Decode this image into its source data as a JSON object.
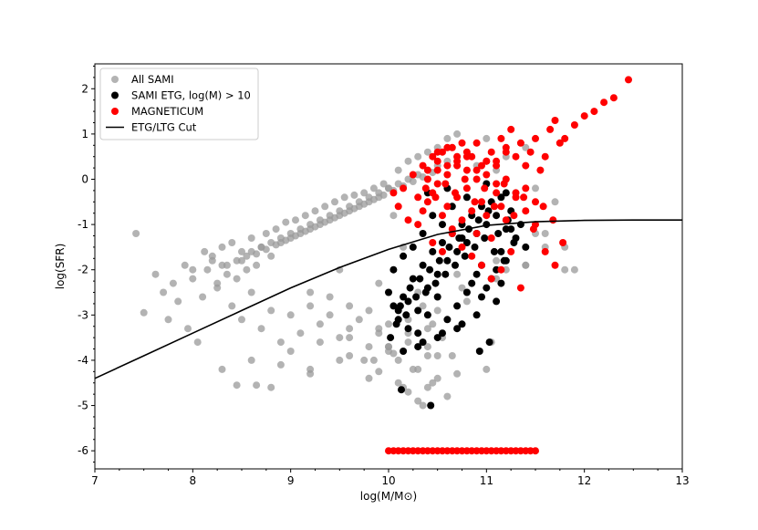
{
  "chart_data": {
    "type": "scatter",
    "xlabel": "log(M/M⊙)",
    "ylabel": "log(SFR)",
    "xlim": [
      7,
      13
    ],
    "ylim": [
      -6.4,
      2.55
    ],
    "xticks": [
      7,
      8,
      9,
      10,
      11,
      12,
      13
    ],
    "yticks": [
      -6,
      -5,
      -4,
      -3,
      -2,
      -1,
      0,
      1,
      2
    ],
    "grid": false,
    "legend_position": "top-left",
    "legend": [
      {
        "label": "All SAMI",
        "marker": "circle",
        "color": "#999999"
      },
      {
        "label": "SAMI ETG, log(M) > 10",
        "marker": "circle",
        "color": "#000000"
      },
      {
        "label": "MAGNETICUM",
        "marker": "circle",
        "color": "#ff0000"
      },
      {
        "label": "ETG/LTG Cut",
        "marker": "line",
        "color": "#000000"
      }
    ],
    "colors": {
      "all_sami": "#999999",
      "sami_etg": "#000000",
      "magneticum": "#ff0000",
      "cut_line": "#000000"
    },
    "series": [
      {
        "name": "All SAMI",
        "color": "#999999",
        "x": [
          7.42,
          7.5,
          7.62,
          7.7,
          7.75,
          7.8,
          7.85,
          7.92,
          7.95,
          8.0,
          8.05,
          8.12,
          8.2,
          8.25,
          8.3,
          8.35,
          8.4,
          8.45,
          8.5,
          8.55,
          8.6,
          8.65,
          8.7,
          8.75,
          8.8,
          8.85,
          8.9,
          8.95,
          9.0,
          9.05,
          9.1,
          9.15,
          9.2,
          9.25,
          9.3,
          9.35,
          9.4,
          9.45,
          9.5,
          9.55,
          9.6,
          9.65,
          9.7,
          9.75,
          9.8,
          9.85,
          9.9,
          9.95,
          10.0,
          10.05,
          10.1,
          10.15,
          10.2,
          10.25,
          10.3,
          10.35,
          10.4,
          10.45,
          10.5,
          10.55,
          10.6,
          10.65,
          10.7,
          10.75,
          10.8,
          10.9,
          11.0,
          11.1,
          11.2,
          11.3,
          11.4,
          11.5,
          11.6,
          11.7,
          11.8,
          11.9,
          8.1,
          8.25,
          8.4,
          8.5,
          8.6,
          8.7,
          8.8,
          8.9,
          9.0,
          9.1,
          9.2,
          9.3,
          9.4,
          9.5,
          9.6,
          9.7,
          9.8,
          9.9,
          10.0,
          10.1,
          10.2,
          10.3,
          10.4,
          10.5,
          8.2,
          8.35,
          8.5,
          8.6,
          8.7,
          8.8,
          8.9,
          9.0,
          9.1,
          9.2,
          9.3,
          9.4,
          9.5,
          9.6,
          9.7,
          9.8,
          9.9,
          10.0,
          10.1,
          10.2,
          10.3,
          10.4,
          10.5,
          10.6,
          10.7,
          8.0,
          8.15,
          8.3,
          8.45,
          8.55,
          8.65,
          8.75,
          8.85,
          8.95,
          9.05,
          9.15,
          9.25,
          9.35,
          9.45,
          9.55,
          9.65,
          9.75,
          9.85,
          9.95,
          10.05,
          10.15,
          10.25,
          10.35,
          10.45,
          9.2,
          9.4,
          9.6,
          9.8,
          10.0,
          10.2,
          10.4,
          8.3,
          8.6,
          8.9,
          9.2,
          9.5,
          9.8,
          10.1,
          10.4,
          9.0,
          9.3,
          9.6,
          9.9,
          10.2,
          10.5,
          10.8,
          11.1,
          11.4,
          8.8,
          9.2,
          9.6,
          10.0,
          10.4,
          10.8,
          11.2,
          11.6,
          9.5,
          9.9,
          10.3,
          10.7,
          11.1,
          11.5,
          10.2,
          10.6,
          11.0,
          11.4,
          11.8,
          10.35,
          10.7,
          11.05,
          10.25,
          10.3,
          10.45,
          10.15,
          9.9,
          10.05,
          9.85,
          9.75,
          8.65,
          8.45,
          10.0,
          10.5
        ],
        "y": [
          -1.2,
          -2.95,
          -2.1,
          -2.5,
          -3.1,
          -2.3,
          -2.7,
          -1.9,
          -3.3,
          -2.0,
          -3.6,
          -1.6,
          -1.8,
          -2.4,
          -1.5,
          -2.1,
          -1.4,
          -2.2,
          -1.6,
          -2.0,
          -1.3,
          -1.9,
          -1.5,
          -1.2,
          -1.7,
          -1.1,
          -1.4,
          -0.95,
          -1.3,
          -0.9,
          -1.2,
          -0.8,
          -1.1,
          -0.7,
          -1.0,
          -0.6,
          -0.9,
          -0.5,
          -0.8,
          -0.4,
          -0.7,
          -0.35,
          -0.6,
          -0.3,
          -0.5,
          -0.2,
          -0.4,
          -0.1,
          -0.2,
          -0.8,
          0.2,
          -1.5,
          0.4,
          -2.2,
          0.5,
          -2.8,
          0.6,
          -3.2,
          0.7,
          -3.5,
          0.9,
          -3.9,
          1.0,
          -2.4,
          0.6,
          0.3,
          0.9,
          0.2,
          0.5,
          -0.3,
          0.7,
          -0.2,
          -1.2,
          -0.5,
          -1.5,
          -2.0,
          -2.6,
          -2.3,
          -2.8,
          -3.1,
          -2.5,
          -3.3,
          -2.9,
          -3.6,
          -3.0,
          -3.4,
          -2.8,
          -3.2,
          -3.0,
          -3.5,
          -3.3,
          -3.1,
          -3.7,
          -3.4,
          -3.8,
          -4.0,
          -3.6,
          -4.2,
          -3.9,
          -4.4,
          -1.7,
          -1.9,
          -1.8,
          -1.6,
          -1.5,
          -1.4,
          -1.3,
          -1.2,
          -1.1,
          -1.0,
          -0.9,
          -0.8,
          -0.7,
          -0.6,
          -0.5,
          -0.4,
          -0.3,
          -0.2,
          -0.1,
          0.0,
          0.1,
          0.2,
          0.3,
          0.4,
          0.5,
          -2.2,
          -2.0,
          -1.9,
          -1.8,
          -1.7,
          -1.65,
          -1.55,
          -1.45,
          -1.35,
          -1.25,
          -1.15,
          -1.05,
          -0.95,
          -0.85,
          -0.75,
          -0.65,
          -0.55,
          -0.45,
          -0.35,
          -0.25,
          -0.15,
          -0.05,
          0.05,
          0.15,
          -2.5,
          -2.6,
          -2.8,
          -2.9,
          -3.2,
          -3.4,
          -3.7,
          -4.2,
          -4.0,
          -4.1,
          -4.3,
          -4.0,
          -4.4,
          -4.5,
          -4.6,
          -3.8,
          -3.6,
          -3.5,
          -3.3,
          -3.1,
          -2.9,
          -2.5,
          -2.2,
          -1.9,
          -4.6,
          -4.2,
          -3.9,
          -3.7,
          -3.3,
          -2.7,
          -2.0,
          -1.5,
          -2.0,
          -2.3,
          -2.5,
          -2.1,
          -1.8,
          -1.2,
          -4.7,
          -4.8,
          -4.2,
          -1.9,
          -2.0,
          -5.0,
          -4.3,
          -3.6,
          -4.2,
          -4.9,
          -4.5,
          -4.6,
          -4.25,
          -3.85,
          -4.0,
          -4.0,
          -4.55,
          -4.55,
          -3.7,
          -3.9
        ]
      },
      {
        "name": "SAMI ETG, log(M) > 10",
        "color": "#000000",
        "x": [
          10.0,
          10.05,
          10.1,
          10.15,
          10.2,
          10.25,
          10.3,
          10.35,
          10.4,
          10.45,
          10.5,
          10.55,
          10.6,
          10.65,
          10.7,
          10.75,
          10.8,
          10.85,
          10.9,
          10.95,
          11.0,
          11.05,
          11.1,
          11.15,
          11.2,
          11.25,
          11.3,
          11.35,
          11.4,
          10.02,
          10.08,
          10.12,
          10.18,
          10.22,
          10.28,
          10.32,
          10.38,
          10.42,
          10.48,
          10.52,
          10.58,
          10.62,
          10.68,
          10.72,
          10.78,
          10.82,
          10.88,
          10.92,
          10.98,
          11.02,
          11.08,
          11.12,
          11.18,
          11.22,
          11.28,
          10.05,
          10.15,
          10.25,
          10.35,
          10.45,
          10.55,
          10.65,
          10.75,
          10.85,
          10.95,
          11.05,
          11.15,
          11.25,
          10.1,
          10.2,
          10.3,
          10.4,
          10.5,
          10.6,
          10.7,
          10.8,
          10.9,
          11.0,
          11.1,
          11.2,
          10.15,
          10.35,
          10.55,
          10.75,
          10.95,
          11.15,
          10.4,
          10.6,
          10.8,
          11.0,
          11.2,
          10.3,
          10.5,
          10.7,
          10.9,
          11.1,
          10.13,
          10.43,
          10.93,
          11.03
        ],
        "y": [
          -2.5,
          -2.8,
          -3.1,
          -2.6,
          -3.3,
          -2.2,
          -2.9,
          -1.9,
          -2.4,
          -1.6,
          -2.1,
          -1.4,
          -1.8,
          -1.2,
          -1.6,
          -1.0,
          -1.4,
          -0.8,
          -1.2,
          -0.6,
          -1.0,
          -0.5,
          -0.8,
          -0.4,
          -1.1,
          -0.7,
          -1.3,
          -1.0,
          -1.5,
          -3.5,
          -3.2,
          -2.8,
          -3.0,
          -2.4,
          -2.6,
          -2.2,
          -2.5,
          -2.0,
          -2.3,
          -1.8,
          -2.1,
          -1.5,
          -1.9,
          -1.3,
          -1.7,
          -1.1,
          -1.5,
          -0.9,
          -1.3,
          -0.7,
          -1.6,
          -1.2,
          -1.8,
          -0.9,
          -1.4,
          -2.0,
          -1.7,
          -1.5,
          -1.2,
          -0.8,
          -1.0,
          -0.6,
          -1.3,
          -2.3,
          -1.9,
          -2.2,
          -1.6,
          -1.1,
          -2.9,
          -2.7,
          -3.4,
          -3.0,
          -2.6,
          -3.1,
          -2.8,
          -2.5,
          -2.1,
          -2.4,
          -2.0,
          -1.8,
          -3.8,
          -3.6,
          -3.4,
          -3.2,
          -2.6,
          -2.3,
          -0.3,
          -0.2,
          -0.4,
          -0.1,
          -0.3,
          -3.7,
          -3.5,
          -3.3,
          -3.0,
          -2.7,
          -4.65,
          -5.0,
          -3.8,
          -3.6
        ]
      },
      {
        "name": "MAGNETICUM",
        "color": "#ff0000",
        "x": [
          10.05,
          10.1,
          10.15,
          10.2,
          10.25,
          10.3,
          10.35,
          10.4,
          10.45,
          10.5,
          10.55,
          10.6,
          10.65,
          10.7,
          10.75,
          10.8,
          10.85,
          10.9,
          10.95,
          11.0,
          11.05,
          11.1,
          11.15,
          11.2,
          11.25,
          11.3,
          11.35,
          11.4,
          11.45,
          11.5,
          11.55,
          11.6,
          11.65,
          11.7,
          11.75,
          11.8,
          11.9,
          12.0,
          12.1,
          12.2,
          12.3,
          12.45,
          10.3,
          10.35,
          10.4,
          10.45,
          10.5,
          10.55,
          10.6,
          10.65,
          10.7,
          10.75,
          10.8,
          10.85,
          10.9,
          10.95,
          11.0,
          11.05,
          11.1,
          11.15,
          11.2,
          11.3,
          11.4,
          11.5,
          11.6,
          11.7,
          10.4,
          10.5,
          10.6,
          10.7,
          10.8,
          10.9,
          11.0,
          11.1,
          11.2,
          11.3,
          11.4,
          11.5,
          10.45,
          10.55,
          10.65,
          10.75,
          10.85,
          10.95,
          11.05,
          11.15,
          11.25,
          11.35,
          10.5,
          10.6,
          10.7,
          10.8,
          10.9,
          11.0,
          11.1,
          11.2,
          10.38,
          10.48,
          10.58,
          10.68,
          10.78,
          10.88,
          10.98,
          11.08,
          11.18,
          11.28,
          11.38,
          11.48,
          11.58,
          11.68,
          11.78,
          10.0,
          10.1,
          10.2,
          10.3,
          10.4,
          10.5,
          10.6,
          10.7,
          10.8,
          10.9,
          11.0,
          11.1,
          11.2,
          11.3,
          11.4,
          11.5,
          10.05,
          10.15,
          10.25,
          10.35,
          10.45,
          10.55,
          10.65,
          10.75,
          10.85,
          10.95,
          11.05,
          11.15,
          11.25,
          11.35,
          11.45
        ],
        "y": [
          -0.3,
          -0.6,
          -0.2,
          -0.9,
          0.1,
          -0.4,
          0.3,
          0.0,
          0.5,
          0.2,
          0.6,
          0.3,
          0.7,
          0.4,
          0.8,
          0.2,
          0.5,
          0.0,
          0.3,
          0.1,
          0.6,
          0.4,
          0.9,
          0.7,
          1.1,
          0.5,
          0.8,
          0.3,
          0.6,
          0.9,
          0.2,
          0.5,
          1.1,
          1.3,
          0.8,
          0.9,
          1.2,
          1.4,
          1.5,
          1.7,
          1.8,
          2.2,
          -1.0,
          -0.7,
          -0.5,
          -0.3,
          -0.1,
          -0.8,
          -0.6,
          -1.1,
          -0.4,
          -0.9,
          -0.2,
          -0.7,
          -1.2,
          -0.5,
          -0.8,
          -1.3,
          -0.3,
          -0.6,
          -0.9,
          -0.4,
          -0.7,
          -1.0,
          -1.6,
          -1.9,
          0.2,
          0.4,
          0.1,
          0.3,
          0.5,
          0.2,
          0.4,
          -0.1,
          0.0,
          -0.3,
          -0.2,
          -0.5,
          -1.4,
          -1.6,
          -1.2,
          -1.5,
          -1.7,
          -1.9,
          -2.2,
          -2.0,
          -1.6,
          -2.4,
          0.6,
          0.7,
          0.5,
          0.6,
          0.8,
          0.4,
          0.3,
          0.6,
          -0.2,
          -0.4,
          -0.1,
          -0.3,
          0.0,
          -0.5,
          -0.2,
          -0.6,
          -0.1,
          -0.8,
          -0.4,
          -1.1,
          -0.6,
          -0.9,
          -1.4,
          -6.0,
          -6.0,
          -6.0,
          -6.0,
          -6.0,
          -6.0,
          -6.0,
          -6.0,
          -6.0,
          -6.0,
          -6.0,
          -6.0,
          -6.0,
          -6.0,
          -6.0,
          -6.0,
          -6.0,
          -6.0,
          -6.0,
          -6.0,
          -6.0,
          -6.0,
          -6.0,
          -6.0,
          -6.0,
          -6.0,
          -6.0,
          -6.0,
          -6.0,
          -6.0,
          -6.0
        ]
      },
      {
        "name": "ETG/LTG Cut",
        "type": "line",
        "color": "#000000",
        "x": [
          7.0,
          7.5,
          8.0,
          8.5,
          9.0,
          9.5,
          10.0,
          10.5,
          11.0,
          11.5,
          12.0,
          12.5,
          13.0
        ],
        "y": [
          -4.4,
          -3.9,
          -3.4,
          -2.9,
          -2.4,
          -1.95,
          -1.55,
          -1.22,
          -1.02,
          -0.94,
          -0.91,
          -0.9,
          -0.9
        ]
      }
    ]
  }
}
